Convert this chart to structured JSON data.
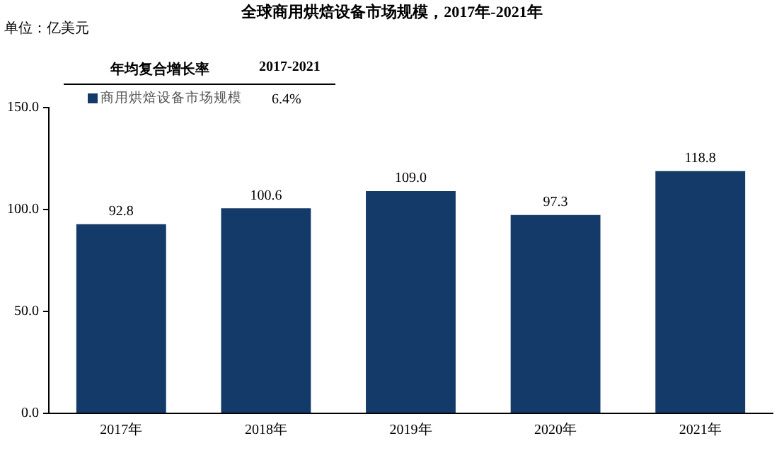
{
  "chart_data": {
    "type": "bar",
    "title": "全球商用烘焙设备市场规模，2017年-2021年",
    "annotations": [
      "单位：亿美元",
      "年均复合增长率",
      "2017-2021",
      "6.4%"
    ],
    "categories": [
      "2017年",
      "2018年",
      "2019年",
      "2020年",
      "2021年"
    ],
    "series": [
      {
        "name": "商用烘焙设备市场规模",
        "color": "#143a69",
        "values": [
          92.8,
          100.6,
          109.0,
          97.3,
          118.8
        ]
      }
    ],
    "value_labels": [
      "92.8",
      "100.6",
      "109.0",
      "97.3",
      "118.8"
    ],
    "ylim": [
      0,
      150
    ],
    "yticks": [
      {
        "value": 0,
        "label": "0.0"
      },
      {
        "value": 50,
        "label": "50.0"
      },
      {
        "value": 100,
        "label": "100.0"
      },
      {
        "value": 150,
        "label": "150.0"
      }
    ],
    "grid": false,
    "legend": "top left"
  }
}
